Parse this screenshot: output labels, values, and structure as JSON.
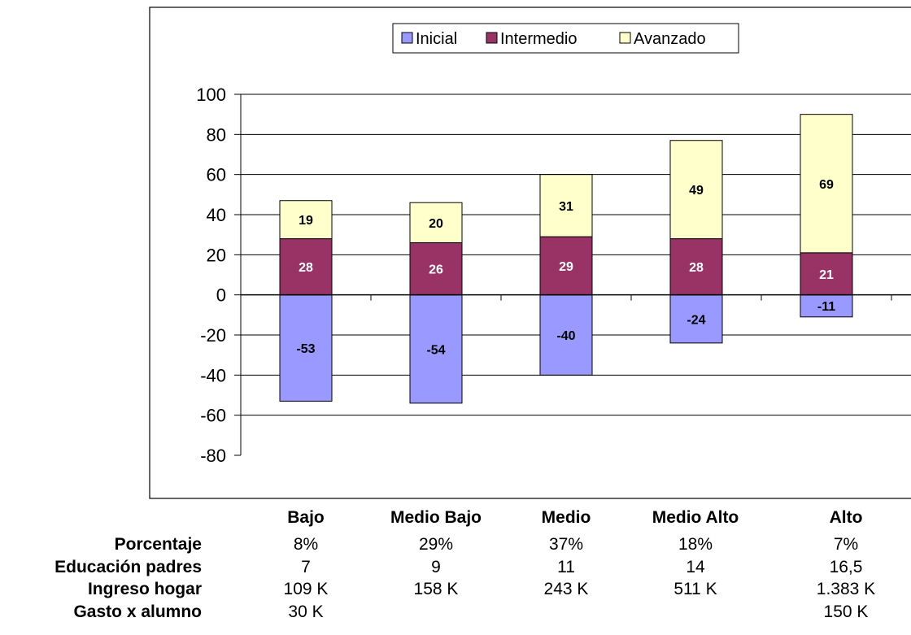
{
  "chart_data": {
    "type": "bar",
    "stacked": true,
    "categories": [
      "Bajo",
      "Medio Bajo",
      "Medio",
      "Medio Alto",
      "Alto"
    ],
    "series": [
      {
        "name": "Inicial",
        "values": [
          -53,
          -54,
          -40,
          -24,
          -11
        ],
        "color": "#9999ff"
      },
      {
        "name": "Intermedio",
        "values": [
          28,
          26,
          29,
          28,
          21
        ],
        "color": "#993366"
      },
      {
        "name": "Avanzado",
        "values": [
          19,
          20,
          31,
          49,
          69
        ],
        "color": "#ffffcc"
      }
    ],
    "ylim": [
      -80,
      100
    ],
    "yticks": [
      "100",
      "80",
      "60",
      "40",
      "20",
      "0",
      "-20",
      "-40",
      "-60",
      "-80"
    ],
    "ytick_values": [
      100,
      80,
      60,
      40,
      20,
      0,
      -20,
      -40,
      -60,
      -80
    ],
    "grid": true,
    "legend_position": "top"
  },
  "table": {
    "rows": [
      {
        "label": "Porcentaje",
        "values": [
          "8%",
          "29%",
          "37%",
          "18%",
          "7%"
        ]
      },
      {
        "label": "Educación padres",
        "values": [
          "7",
          "9",
          "11",
          "14",
          "16,5"
        ]
      },
      {
        "label": "Ingreso hogar",
        "values": [
          "109 K",
          "158 K",
          "243 K",
          "511 K",
          "1.383 K"
        ]
      },
      {
        "label": "Gasto x alumno",
        "values": [
          "30 K",
          "",
          "",
          "",
          "150 K"
        ]
      }
    ]
  }
}
